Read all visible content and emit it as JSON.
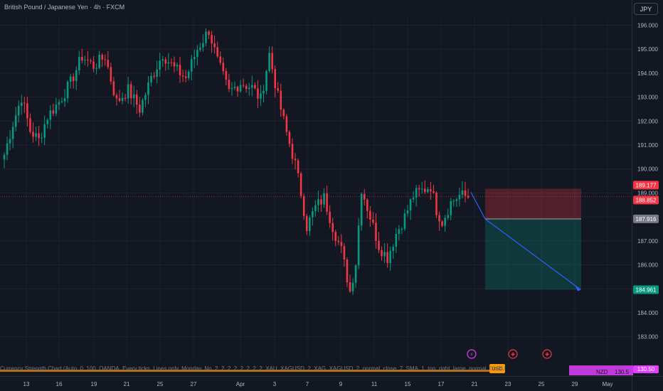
{
  "header": {
    "title": "British Pound / Japanese Yen · 4h · FXCM",
    "currency": "JPY"
  },
  "indicator": {
    "text": "Currency Strength Chart (Auto, 0, 100, OANDA, Every ticks, Lines only, Monday, No, 2, 2, 2, 2, 2, 2, 2, 2, XAU, XAGUSD, 2, XAG, XAGUSD, 2, normal, close, 7, SMA, 1, top, right, large, normal, EURUSD, USDJPY, GBPUSD, AUDUSD, USDCAD",
    "tag_usd": "USD",
    "tags": [
      "NZD",
      "130.5"
    ],
    "last_value": "130.50"
  },
  "price_labels": {
    "current": "188.852",
    "stop": "189.177",
    "entry": "187.916",
    "target": "184.961"
  },
  "chart_data": {
    "type": "candlestick",
    "title": "",
    "xlabel": "",
    "ylabel": "",
    "ylim": [
      182.5,
      196.5
    ],
    "y_ticks": [
      183,
      184,
      185,
      186,
      187,
      188,
      189,
      190,
      191,
      192,
      193,
      194,
      195,
      196
    ],
    "y_tick_labels": [
      "183.000",
      "184.000",
      "185.000",
      "186.000",
      "187.000",
      "188.000",
      "189.000",
      "190.000",
      "191.000",
      "192.000",
      "193.000",
      "194.000",
      "195.000",
      "196.000"
    ],
    "x_ticks": [
      "13",
      "16",
      "19",
      "21",
      "25",
      "27",
      "Apr",
      "3",
      "7",
      "9",
      "11",
      "15",
      "17",
      "21",
      "23",
      "25",
      "29",
      "May"
    ],
    "colors": {
      "up": "#089981",
      "down": "#f23645",
      "arrow": "#2962ff",
      "risk": "#f23645",
      "reward": "#089981"
    },
    "anchors": [
      {
        "i": 0,
        "p": 190.6
      },
      {
        "i": 3,
        "p": 191.9
      },
      {
        "i": 6,
        "p": 193.0
      },
      {
        "i": 9,
        "p": 191.6
      },
      {
        "i": 12,
        "p": 191.2
      },
      {
        "i": 15,
        "p": 192.2
      },
      {
        "i": 19,
        "p": 192.8
      },
      {
        "i": 23,
        "p": 193.6
      },
      {
        "i": 27,
        "p": 194.7
      },
      {
        "i": 31,
        "p": 194.3
      },
      {
        "i": 35,
        "p": 194.7
      },
      {
        "i": 39,
        "p": 192.8
      },
      {
        "i": 43,
        "p": 193.3
      },
      {
        "i": 47,
        "p": 192.5
      },
      {
        "i": 51,
        "p": 193.8
      },
      {
        "i": 55,
        "p": 194.8
      },
      {
        "i": 59,
        "p": 194.2
      },
      {
        "i": 63,
        "p": 193.8
      },
      {
        "i": 67,
        "p": 195.0
      },
      {
        "i": 71,
        "p": 195.8
      },
      {
        "i": 74,
        "p": 194.5
      },
      {
        "i": 78,
        "p": 193.2
      },
      {
        "i": 82,
        "p": 193.6
      },
      {
        "i": 86,
        "p": 193.4
      },
      {
        "i": 89,
        "p": 192.9
      },
      {
        "i": 92,
        "p": 194.8
      },
      {
        "i": 95,
        "p": 193.0
      },
      {
        "i": 98,
        "p": 191.5
      },
      {
        "i": 101,
        "p": 190.2
      },
      {
        "i": 103,
        "p": 189.0
      },
      {
        "i": 105,
        "p": 187.6
      },
      {
        "i": 108,
        "p": 188.4
      },
      {
        "i": 111,
        "p": 188.8
      },
      {
        "i": 114,
        "p": 187.6
      },
      {
        "i": 117,
        "p": 186.6
      },
      {
        "i": 120,
        "p": 184.9
      },
      {
        "i": 122,
        "p": 186.1
      },
      {
        "i": 124,
        "p": 189.2
      },
      {
        "i": 127,
        "p": 188.0
      },
      {
        "i": 130,
        "p": 186.8
      },
      {
        "i": 133,
        "p": 186.3
      },
      {
        "i": 136,
        "p": 187.3
      },
      {
        "i": 139,
        "p": 188.0
      },
      {
        "i": 142,
        "p": 188.9
      },
      {
        "i": 145,
        "p": 189.1
      },
      {
        "i": 148,
        "p": 189.3
      },
      {
        "i": 150,
        "p": 188.3
      },
      {
        "i": 152,
        "p": 187.8
      },
      {
        "i": 155,
        "p": 188.6
      },
      {
        "i": 158,
        "p": 188.9
      },
      {
        "i": 161,
        "p": 188.85
      }
    ],
    "candle_count": 162,
    "position": {
      "stop": 189.177,
      "entry": 187.916,
      "target": 184.961,
      "current": 188.852
    }
  }
}
